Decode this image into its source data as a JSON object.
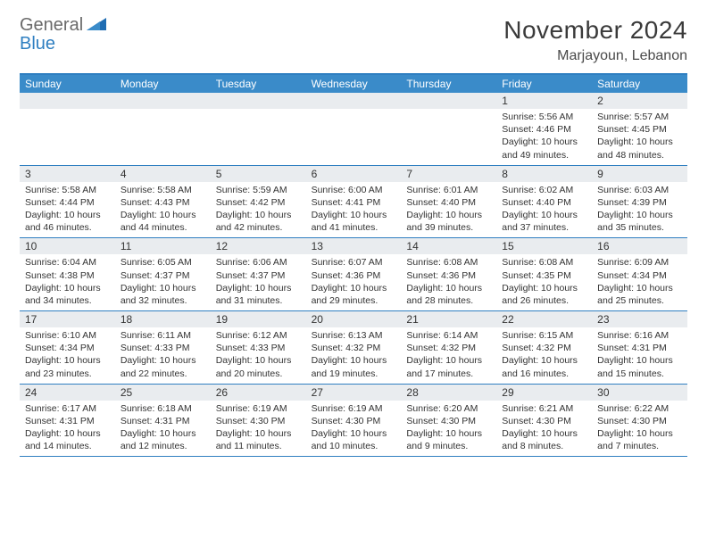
{
  "logo": {
    "line1": "General",
    "line2": "Blue"
  },
  "title": "November 2024",
  "location": "Marjayoun, Lebanon",
  "colors": {
    "header_bg": "#3a8bc9",
    "border": "#2f7fc1",
    "daynum_bg": "#e9ecef",
    "text": "#333333",
    "title_text": "#3a3a3a"
  },
  "dow": [
    "Sunday",
    "Monday",
    "Tuesday",
    "Wednesday",
    "Thursday",
    "Friday",
    "Saturday"
  ],
  "weeks": [
    [
      {
        "n": "",
        "sr": "",
        "ss": "",
        "dl": ""
      },
      {
        "n": "",
        "sr": "",
        "ss": "",
        "dl": ""
      },
      {
        "n": "",
        "sr": "",
        "ss": "",
        "dl": ""
      },
      {
        "n": "",
        "sr": "",
        "ss": "",
        "dl": ""
      },
      {
        "n": "",
        "sr": "",
        "ss": "",
        "dl": ""
      },
      {
        "n": "1",
        "sr": "Sunrise: 5:56 AM",
        "ss": "Sunset: 4:46 PM",
        "dl": "Daylight: 10 hours and 49 minutes."
      },
      {
        "n": "2",
        "sr": "Sunrise: 5:57 AM",
        "ss": "Sunset: 4:45 PM",
        "dl": "Daylight: 10 hours and 48 minutes."
      }
    ],
    [
      {
        "n": "3",
        "sr": "Sunrise: 5:58 AM",
        "ss": "Sunset: 4:44 PM",
        "dl": "Daylight: 10 hours and 46 minutes."
      },
      {
        "n": "4",
        "sr": "Sunrise: 5:58 AM",
        "ss": "Sunset: 4:43 PM",
        "dl": "Daylight: 10 hours and 44 minutes."
      },
      {
        "n": "5",
        "sr": "Sunrise: 5:59 AM",
        "ss": "Sunset: 4:42 PM",
        "dl": "Daylight: 10 hours and 42 minutes."
      },
      {
        "n": "6",
        "sr": "Sunrise: 6:00 AM",
        "ss": "Sunset: 4:41 PM",
        "dl": "Daylight: 10 hours and 41 minutes."
      },
      {
        "n": "7",
        "sr": "Sunrise: 6:01 AM",
        "ss": "Sunset: 4:40 PM",
        "dl": "Daylight: 10 hours and 39 minutes."
      },
      {
        "n": "8",
        "sr": "Sunrise: 6:02 AM",
        "ss": "Sunset: 4:40 PM",
        "dl": "Daylight: 10 hours and 37 minutes."
      },
      {
        "n": "9",
        "sr": "Sunrise: 6:03 AM",
        "ss": "Sunset: 4:39 PM",
        "dl": "Daylight: 10 hours and 35 minutes."
      }
    ],
    [
      {
        "n": "10",
        "sr": "Sunrise: 6:04 AM",
        "ss": "Sunset: 4:38 PM",
        "dl": "Daylight: 10 hours and 34 minutes."
      },
      {
        "n": "11",
        "sr": "Sunrise: 6:05 AM",
        "ss": "Sunset: 4:37 PM",
        "dl": "Daylight: 10 hours and 32 minutes."
      },
      {
        "n": "12",
        "sr": "Sunrise: 6:06 AM",
        "ss": "Sunset: 4:37 PM",
        "dl": "Daylight: 10 hours and 31 minutes."
      },
      {
        "n": "13",
        "sr": "Sunrise: 6:07 AM",
        "ss": "Sunset: 4:36 PM",
        "dl": "Daylight: 10 hours and 29 minutes."
      },
      {
        "n": "14",
        "sr": "Sunrise: 6:08 AM",
        "ss": "Sunset: 4:36 PM",
        "dl": "Daylight: 10 hours and 28 minutes."
      },
      {
        "n": "15",
        "sr": "Sunrise: 6:08 AM",
        "ss": "Sunset: 4:35 PM",
        "dl": "Daylight: 10 hours and 26 minutes."
      },
      {
        "n": "16",
        "sr": "Sunrise: 6:09 AM",
        "ss": "Sunset: 4:34 PM",
        "dl": "Daylight: 10 hours and 25 minutes."
      }
    ],
    [
      {
        "n": "17",
        "sr": "Sunrise: 6:10 AM",
        "ss": "Sunset: 4:34 PM",
        "dl": "Daylight: 10 hours and 23 minutes."
      },
      {
        "n": "18",
        "sr": "Sunrise: 6:11 AM",
        "ss": "Sunset: 4:33 PM",
        "dl": "Daylight: 10 hours and 22 minutes."
      },
      {
        "n": "19",
        "sr": "Sunrise: 6:12 AM",
        "ss": "Sunset: 4:33 PM",
        "dl": "Daylight: 10 hours and 20 minutes."
      },
      {
        "n": "20",
        "sr": "Sunrise: 6:13 AM",
        "ss": "Sunset: 4:32 PM",
        "dl": "Daylight: 10 hours and 19 minutes."
      },
      {
        "n": "21",
        "sr": "Sunrise: 6:14 AM",
        "ss": "Sunset: 4:32 PM",
        "dl": "Daylight: 10 hours and 17 minutes."
      },
      {
        "n": "22",
        "sr": "Sunrise: 6:15 AM",
        "ss": "Sunset: 4:32 PM",
        "dl": "Daylight: 10 hours and 16 minutes."
      },
      {
        "n": "23",
        "sr": "Sunrise: 6:16 AM",
        "ss": "Sunset: 4:31 PM",
        "dl": "Daylight: 10 hours and 15 minutes."
      }
    ],
    [
      {
        "n": "24",
        "sr": "Sunrise: 6:17 AM",
        "ss": "Sunset: 4:31 PM",
        "dl": "Daylight: 10 hours and 14 minutes."
      },
      {
        "n": "25",
        "sr": "Sunrise: 6:18 AM",
        "ss": "Sunset: 4:31 PM",
        "dl": "Daylight: 10 hours and 12 minutes."
      },
      {
        "n": "26",
        "sr": "Sunrise: 6:19 AM",
        "ss": "Sunset: 4:30 PM",
        "dl": "Daylight: 10 hours and 11 minutes."
      },
      {
        "n": "27",
        "sr": "Sunrise: 6:19 AM",
        "ss": "Sunset: 4:30 PM",
        "dl": "Daylight: 10 hours and 10 minutes."
      },
      {
        "n": "28",
        "sr": "Sunrise: 6:20 AM",
        "ss": "Sunset: 4:30 PM",
        "dl": "Daylight: 10 hours and 9 minutes."
      },
      {
        "n": "29",
        "sr": "Sunrise: 6:21 AM",
        "ss": "Sunset: 4:30 PM",
        "dl": "Daylight: 10 hours and 8 minutes."
      },
      {
        "n": "30",
        "sr": "Sunrise: 6:22 AM",
        "ss": "Sunset: 4:30 PM",
        "dl": "Daylight: 10 hours and 7 minutes."
      }
    ]
  ]
}
